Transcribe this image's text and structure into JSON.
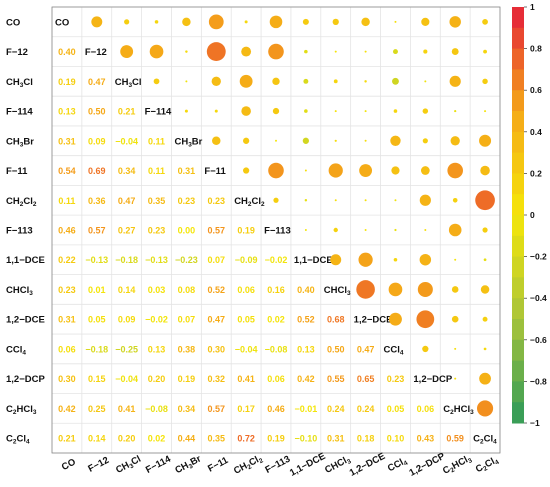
{
  "chart_data": {
    "type": "heatmap",
    "title": "",
    "xlabel": "",
    "ylabel": "",
    "lower_triangle": "correlation coefficients as text",
    "upper_triangle": "circles sized and colored by |r|",
    "variables": [
      {
        "base": "CO",
        "sub": ""
      },
      {
        "base": "F−12",
        "sub": ""
      },
      {
        "base": "CH",
        "sub": "3",
        "tail": "Cl"
      },
      {
        "base": "F−114",
        "sub": ""
      },
      {
        "base": "CH",
        "sub": "3",
        "tail": "Br"
      },
      {
        "base": "F−11",
        "sub": ""
      },
      {
        "base": "CH",
        "sub": "2",
        "tail": "Cl",
        "sub2": "2"
      },
      {
        "base": "F−113",
        "sub": ""
      },
      {
        "base": "1,1−DCE",
        "sub": ""
      },
      {
        "base": "CHCl",
        "sub": "3"
      },
      {
        "base": "1,2−DCE",
        "sub": ""
      },
      {
        "base": "CCl",
        "sub": "4"
      },
      {
        "base": "1,2−DCP",
        "sub": ""
      },
      {
        "base": "C",
        "sub": "2",
        "tail": "HCl",
        "sub2": "3"
      },
      {
        "base": "C",
        "sub": "2",
        "tail": "Cl",
        "sub2": "4"
      }
    ],
    "correlation_matrix": [
      [
        1,
        0.4,
        0.19,
        0.13,
        0.31,
        0.54,
        0.11,
        0.46,
        0.22,
        0.23,
        0.31,
        0.06,
        0.3,
        0.42,
        0.21
      ],
      [
        0.4,
        1,
        0.47,
        0.5,
        0.09,
        0.69,
        0.36,
        0.57,
        -0.13,
        0.01,
        0.05,
        -0.18,
        0.15,
        0.25,
        0.14
      ],
      [
        0.19,
        0.47,
        1,
        0.21,
        -0.04,
        0.34,
        0.47,
        0.27,
        -0.18,
        0.14,
        0.09,
        -0.25,
        -0.04,
        0.41,
        0.2
      ],
      [
        0.13,
        0.5,
        0.21,
        1,
        0.11,
        0.11,
        0.35,
        0.23,
        -0.13,
        0.03,
        -0.02,
        0.13,
        0.2,
        -0.08,
        0.02
      ],
      [
        0.31,
        0.09,
        -0.04,
        0.11,
        1,
        0.31,
        0.23,
        0.0,
        -0.23,
        0.08,
        0.07,
        0.38,
        0.19,
        0.34,
        0.44
      ],
      [
        0.54,
        0.69,
        0.34,
        0.11,
        0.31,
        1,
        0.23,
        0.57,
        0.07,
        0.52,
        0.47,
        0.3,
        0.32,
        0.57,
        0.35
      ],
      [
        0.11,
        0.36,
        0.47,
        0.35,
        0.23,
        0.23,
        1,
        0.19,
        -0.09,
        0.06,
        0.05,
        -0.04,
        0.41,
        0.17,
        0.72
      ],
      [
        0.46,
        0.57,
        0.27,
        0.23,
        0.0,
        0.57,
        0.19,
        1,
        -0.02,
        0.16,
        0.02,
        -0.08,
        0.06,
        0.46,
        0.19
      ],
      [
        0.22,
        -0.13,
        -0.18,
        -0.13,
        -0.23,
        0.07,
        -0.09,
        -0.02,
        1,
        0.4,
        0.52,
        0.13,
        0.42,
        -0.01,
        -0.1
      ],
      [
        0.23,
        0.01,
        0.14,
        0.03,
        0.08,
        0.52,
        0.06,
        0.16,
        0.4,
        1,
        0.68,
        0.5,
        0.55,
        0.24,
        0.31
      ],
      [
        0.31,
        0.05,
        0.09,
        -0.02,
        0.07,
        0.47,
        0.05,
        0.02,
        0.52,
        0.68,
        1,
        0.47,
        0.65,
        0.24,
        0.18
      ],
      [
        0.06,
        -0.18,
        -0.25,
        0.13,
        0.38,
        0.3,
        -0.04,
        -0.08,
        0.13,
        0.5,
        0.47,
        1,
        0.23,
        0.05,
        0.1
      ],
      [
        0.3,
        0.15,
        -0.04,
        0.2,
        0.19,
        0.32,
        0.41,
        0.06,
        0.42,
        0.55,
        0.65,
        0.23,
        1,
        0.06,
        0.43
      ],
      [
        0.42,
        0.25,
        0.41,
        -0.08,
        0.34,
        0.57,
        0.17,
        0.46,
        -0.01,
        0.24,
        0.24,
        0.05,
        0.06,
        1,
        0.59
      ],
      [
        0.21,
        0.14,
        0.2,
        0.02,
        0.44,
        0.35,
        0.72,
        0.19,
        -0.1,
        0.31,
        0.18,
        0.1,
        0.43,
        0.59,
        1
      ]
    ],
    "colorbar": {
      "range": [
        -1,
        1
      ],
      "ticks": [
        "1",
        "0.8",
        "0.6",
        "0.4",
        "0.2",
        "0",
        "−0.2",
        "−0.4",
        "−0.6",
        "−0.8",
        "−1"
      ],
      "colors": [
        "#2e9a5a",
        "#a8c43a",
        "#f5e60a",
        "#f5a818",
        "#e41f3a"
      ]
    }
  }
}
